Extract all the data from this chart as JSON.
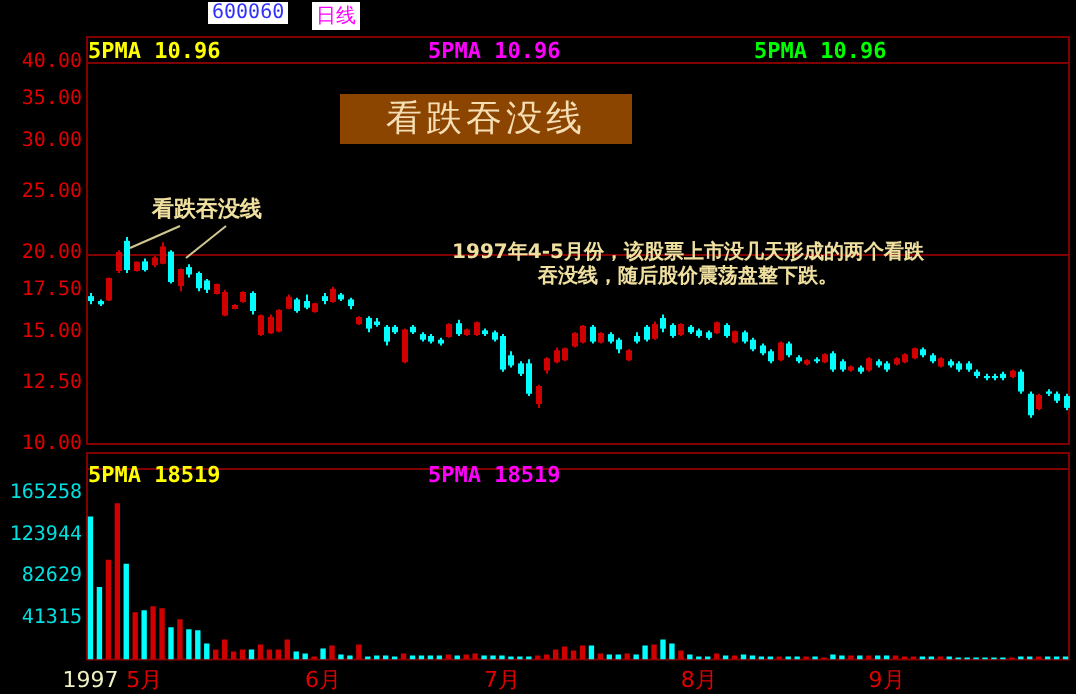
{
  "chart_data": [
    {
      "type": "candlestick",
      "title": "看跌吞没线",
      "annotations": [
        "600060",
        "日线",
        "5PMA 10.96",
        "5PMA 10.96",
        "5PMA 10.96",
        {
          "text": "看跌吞没线",
          "y": 20.5
        },
        "1997年4-5月份，该股票上市没几天形成的两个看跌吞没线，随后股价震荡盘整下跌。"
      ],
      "categories": [
        null,
        null,
        null,
        null,
        null,
        null,
        null,
        null,
        null,
        null,
        null,
        null,
        null,
        null,
        null,
        null,
        null,
        null,
        null,
        null,
        null,
        null,
        null,
        null,
        null,
        null,
        null,
        null,
        null,
        null,
        null,
        null,
        null,
        null,
        null,
        null,
        null,
        null,
        null,
        null,
        null,
        null,
        null,
        null,
        null,
        null,
        null,
        null,
        null,
        null,
        null,
        null,
        null,
        null,
        null,
        null,
        null,
        null,
        null,
        null,
        null,
        null,
        null,
        null,
        null,
        null,
        null,
        null,
        null,
        null,
        null,
        null,
        null,
        null,
        null,
        null,
        null,
        null,
        null,
        null,
        null,
        null,
        null,
        null,
        null,
        null,
        null,
        null,
        null,
        null,
        null,
        null,
        null,
        null,
        null,
        null,
        null,
        null,
        null,
        null,
        null,
        null,
        null,
        null,
        null,
        null,
        null,
        null,
        null,
        null
      ],
      "ohlc": [
        [
          17.1,
          17.3,
          16.6,
          16.8
        ],
        [
          16.8,
          16.9,
          16.5,
          16.6
        ],
        [
          16.9,
          18.3,
          16.8,
          18.2
        ],
        [
          18.8,
          20.2,
          18.6,
          20.0
        ],
        [
          20.9,
          21.2,
          18.6,
          18.8
        ],
        [
          18.8,
          19.4,
          18.7,
          19.3
        ],
        [
          19.4,
          19.6,
          18.7,
          18.8
        ],
        [
          19.2,
          19.8,
          19.0,
          19.6
        ],
        [
          19.3,
          20.8,
          19.2,
          20.4
        ],
        [
          20.1,
          20.2,
          17.9,
          18.0
        ],
        [
          17.8,
          18.9,
          17.4,
          18.8
        ],
        [
          19.0,
          19.2,
          18.3,
          18.5
        ],
        [
          18.6,
          18.7,
          17.4,
          17.6
        ],
        [
          18.1,
          18.2,
          17.3,
          17.5
        ],
        [
          17.3,
          17.9,
          17.2,
          17.8
        ],
        [
          16.0,
          17.5,
          15.9,
          17.3
        ],
        [
          16.4,
          16.6,
          16.3,
          16.5
        ],
        [
          16.8,
          17.4,
          16.7,
          17.3
        ],
        [
          17.3,
          17.4,
          16.0,
          16.2
        ],
        [
          14.9,
          16.0,
          14.8,
          15.9
        ],
        [
          15.0,
          16.0,
          14.9,
          15.8
        ],
        [
          15.1,
          16.3,
          15.0,
          16.2
        ],
        [
          16.4,
          17.2,
          16.3,
          17.0
        ],
        [
          16.9,
          17.0,
          16.1,
          16.2
        ],
        [
          16.8,
          17.2,
          16.3,
          16.4
        ],
        [
          16.2,
          16.7,
          16.1,
          16.6
        ],
        [
          17.1,
          17.3,
          16.6,
          16.8
        ],
        [
          16.8,
          17.7,
          16.7,
          17.5
        ],
        [
          17.2,
          17.3,
          16.8,
          16.9
        ],
        [
          16.9,
          17.0,
          16.3,
          16.5
        ],
        [
          15.5,
          15.9,
          15.4,
          15.8
        ],
        [
          15.8,
          15.9,
          15.0,
          15.2
        ],
        [
          15.6,
          15.8,
          15.3,
          15.4
        ],
        [
          15.3,
          15.4,
          14.3,
          14.5
        ],
        [
          15.3,
          15.4,
          14.9,
          15.0
        ],
        [
          13.5,
          15.2,
          13.4,
          15.1
        ],
        [
          15.3,
          15.4,
          14.9,
          15.0
        ],
        [
          14.9,
          15.0,
          14.5,
          14.6
        ],
        [
          14.8,
          14.9,
          14.4,
          14.5
        ],
        [
          14.6,
          14.7,
          14.3,
          14.4
        ],
        [
          14.8,
          15.5,
          14.7,
          15.4
        ],
        [
          15.5,
          15.7,
          14.8,
          14.9
        ],
        [
          14.9,
          15.2,
          14.8,
          15.1
        ],
        [
          14.9,
          15.6,
          14.8,
          15.5
        ],
        [
          15.1,
          15.2,
          14.8,
          14.9
        ],
        [
          15.0,
          15.1,
          14.5,
          14.6
        ],
        [
          14.8,
          14.9,
          13.0,
          13.1
        ],
        [
          13.8,
          14.0,
          13.2,
          13.3
        ],
        [
          13.4,
          13.5,
          12.8,
          12.9
        ],
        [
          13.4,
          13.6,
          11.9,
          12.0
        ],
        [
          11.6,
          12.4,
          11.4,
          12.3
        ],
        [
          13.1,
          13.7,
          12.9,
          13.6
        ],
        [
          13.5,
          14.2,
          13.4,
          14.0
        ],
        [
          13.6,
          14.2,
          13.5,
          14.1
        ],
        [
          14.3,
          15.0,
          14.2,
          14.9
        ],
        [
          14.5,
          15.4,
          14.4,
          15.3
        ],
        [
          15.3,
          15.4,
          14.4,
          14.5
        ],
        [
          14.5,
          15.0,
          14.4,
          14.9
        ],
        [
          14.9,
          15.0,
          14.4,
          14.5
        ],
        [
          14.6,
          14.7,
          13.9,
          14.1
        ],
        [
          13.6,
          14.1,
          13.5,
          14.0
        ],
        [
          14.8,
          15.0,
          14.4,
          14.5
        ],
        [
          15.3,
          15.4,
          14.5,
          14.6
        ],
        [
          14.7,
          15.6,
          14.6,
          15.4
        ],
        [
          15.8,
          16.0,
          15.0,
          15.2
        ],
        [
          15.4,
          15.5,
          14.7,
          14.8
        ],
        [
          14.9,
          15.5,
          14.8,
          15.4
        ],
        [
          15.3,
          15.4,
          14.9,
          15.0
        ],
        [
          15.1,
          15.2,
          14.7,
          14.8
        ],
        [
          15.0,
          15.1,
          14.6,
          14.7
        ],
        [
          15.0,
          15.6,
          14.9,
          15.5
        ],
        [
          15.4,
          15.5,
          14.7,
          14.8
        ],
        [
          14.5,
          15.1,
          14.4,
          15.0
        ],
        [
          15.0,
          15.1,
          14.4,
          14.5
        ],
        [
          14.6,
          14.7,
          14.0,
          14.1
        ],
        [
          14.3,
          14.4,
          13.8,
          13.9
        ],
        [
          14.0,
          14.1,
          13.4,
          13.5
        ],
        [
          13.6,
          14.5,
          13.5,
          14.4
        ],
        [
          14.4,
          14.5,
          13.7,
          13.8
        ],
        [
          13.7,
          13.8,
          13.4,
          13.5
        ],
        [
          13.4,
          13.6,
          13.3,
          13.5
        ],
        [
          13.6,
          13.7,
          13.4,
          13.5
        ],
        [
          13.5,
          13.9,
          13.4,
          13.8
        ],
        [
          13.9,
          14.0,
          13.0,
          13.1
        ],
        [
          13.5,
          13.6,
          13.0,
          13.1
        ],
        [
          13.1,
          13.3,
          13.0,
          13.2
        ],
        [
          13.2,
          13.3,
          12.9,
          13.0
        ],
        [
          13.1,
          13.7,
          13.0,
          13.6
        ],
        [
          13.5,
          13.6,
          13.2,
          13.3
        ],
        [
          13.4,
          13.5,
          13.0,
          13.1
        ],
        [
          13.4,
          13.7,
          13.3,
          13.6
        ],
        [
          13.5,
          13.9,
          13.4,
          13.8
        ],
        [
          13.7,
          14.2,
          13.6,
          14.1
        ],
        [
          14.1,
          14.2,
          13.7,
          13.8
        ],
        [
          13.8,
          13.9,
          13.4,
          13.5
        ],
        [
          13.3,
          13.7,
          13.2,
          13.6
        ],
        [
          13.5,
          13.6,
          13.2,
          13.3
        ],
        [
          13.4,
          13.5,
          13.0,
          13.1
        ],
        [
          13.4,
          13.5,
          13.0,
          13.1
        ],
        [
          13.0,
          13.1,
          12.7,
          12.8
        ],
        [
          12.8,
          12.9,
          12.6,
          12.7
        ],
        [
          12.8,
          12.9,
          12.6,
          12.7
        ],
        [
          12.9,
          13.0,
          12.6,
          12.7
        ],
        [
          12.8,
          13.1,
          12.7,
          13.0
        ],
        [
          13.0,
          13.1,
          12.0,
          12.1
        ],
        [
          12.0,
          12.1,
          11.0,
          11.1
        ],
        [
          11.4,
          12.0,
          11.3,
          11.9
        ],
        [
          12.1,
          12.2,
          11.9,
          12.0
        ],
        [
          12.0,
          12.1,
          11.6,
          11.7
        ],
        [
          11.9,
          12.0,
          11.3,
          11.4
        ]
      ],
      "colors": [
        "#00ffff",
        "#00ffff",
        "#d00000",
        "#d00000",
        "#00ffff",
        "#d00000",
        "#00ffff",
        "#d00000",
        "#d00000",
        "#00ffff",
        "#d00000",
        "#00ffff",
        "#00ffff",
        "#00ffff",
        "#d00000",
        "#d00000",
        "#d00000",
        "#d00000",
        "#00ffff",
        "#d00000",
        "#d00000",
        "#d00000",
        "#d00000",
        "#00ffff",
        "#00ffff",
        "#d00000",
        "#00ffff",
        "#d00000",
        "#00ffff",
        "#00ffff",
        "#d00000",
        "#00ffff",
        "#00ffff",
        "#00ffff",
        "#00ffff",
        "#d00000",
        "#00ffff",
        "#00ffff",
        "#00ffff",
        "#00ffff",
        "#d00000",
        "#00ffff",
        "#d00000",
        "#d00000",
        "#00ffff",
        "#00ffff",
        "#00ffff",
        "#00ffff",
        "#00ffff",
        "#00ffff",
        "#d00000",
        "#d00000",
        "#d00000",
        "#d00000",
        "#d00000",
        "#d00000",
        "#00ffff",
        "#d00000",
        "#00ffff",
        "#00ffff",
        "#d00000",
        "#00ffff",
        "#00ffff",
        "#d00000",
        "#00ffff",
        "#00ffff",
        "#d00000",
        "#00ffff",
        "#00ffff",
        "#00ffff",
        "#d00000",
        "#00ffff",
        "#d00000",
        "#00ffff",
        "#00ffff",
        "#00ffff",
        "#00ffff",
        "#d00000",
        "#00ffff",
        "#00ffff",
        "#d00000",
        "#00ffff",
        "#d00000",
        "#00ffff",
        "#00ffff",
        "#d00000",
        "#00ffff",
        "#d00000",
        "#00ffff",
        "#00ffff",
        "#d00000",
        "#d00000",
        "#d00000",
        "#00ffff",
        "#00ffff",
        "#d00000",
        "#00ffff",
        "#00ffff",
        "#00ffff",
        "#00ffff",
        "#00ffff",
        "#00ffff",
        "#00ffff",
        "#d00000",
        "#00ffff",
        "#00ffff",
        "#d00000",
        "#00ffff",
        "#00ffff",
        "#00ffff"
      ],
      "log": "y",
      "ylim": [
        10,
        40
      ],
      "yticks": [
        {
          "value": 10,
          "label": "10.00"
        },
        {
          "value": 12.5,
          "label": "12.50"
        },
        {
          "value": 15,
          "label": "15.00"
        },
        {
          "value": 17.5,
          "label": "17.50"
        },
        {
          "value": 20,
          "label": "20.00"
        },
        {
          "value": 25,
          "label": "25.00"
        },
        {
          "value": 30,
          "label": "30.00"
        },
        {
          "value": 35,
          "label": "35.00"
        },
        {
          "value": 40,
          "label": "40.00"
        }
      ],
      "tick_labels": "y",
      "grid": false,
      "ref_lines": [
        {
          "axis": "y",
          "value": 20
        }
      ]
    },
    {
      "type": "bar",
      "annotations": [
        "5PMA 18519",
        "5PMA 18519"
      ],
      "categories": [
        "1997",
        null,
        null,
        null,
        null,
        null,
        "5月",
        null,
        null,
        null,
        null,
        null,
        null,
        null,
        null,
        null,
        null,
        null,
        null,
        null,
        null,
        null,
        null,
        null,
        null,
        null,
        "6月",
        null,
        null,
        null,
        null,
        null,
        null,
        null,
        null,
        null,
        null,
        null,
        null,
        null,
        null,
        null,
        null,
        null,
        null,
        null,
        "7月",
        null,
        null,
        null,
        null,
        null,
        null,
        null,
        null,
        null,
        null,
        null,
        null,
        null,
        null,
        null,
        null,
        null,
        null,
        null,
        null,
        null,
        "8月",
        null,
        null,
        null,
        null,
        null,
        null,
        null,
        null,
        null,
        null,
        null,
        null,
        null,
        null,
        null,
        null,
        null,
        null,
        null,
        null,
        "9月",
        null,
        null,
        null,
        null,
        null,
        null,
        null,
        null,
        null,
        null,
        null,
        null,
        null,
        null,
        null,
        null,
        null,
        null,
        null,
        null
      ],
      "values": [
        142000,
        72000,
        99000,
        155000,
        95000,
        47000,
        49000,
        53000,
        51000,
        32000,
        40000,
        30000,
        29000,
        16000,
        10000,
        20000,
        8000,
        10000,
        10000,
        15000,
        10000,
        10000,
        20000,
        8000,
        6000,
        3000,
        11000,
        14000,
        5000,
        4000,
        15000,
        3000,
        4000,
        4000,
        3000,
        6000,
        4000,
        4000,
        4000,
        4000,
        5000,
        4000,
        5000,
        6000,
        4000,
        4000,
        4000,
        3000,
        3000,
        3000,
        4000,
        5000,
        10000,
        13000,
        9000,
        14000,
        14000,
        6000,
        5000,
        5000,
        6000,
        5000,
        14000,
        15000,
        20000,
        16000,
        9000,
        5000,
        3000,
        3000,
        6000,
        4000,
        4000,
        5000,
        4000,
        3000,
        3000,
        3000,
        3000,
        3000,
        3000,
        3000,
        2000,
        5000,
        4000,
        4000,
        4000,
        4000,
        4000,
        4000,
        4000,
        3000,
        3000,
        3000,
        3000,
        3000,
        3000,
        2000,
        2000,
        2000,
        2000,
        2000,
        2000,
        2000,
        3000,
        3000,
        3000,
        3000,
        3000,
        3000
      ],
      "colors": [
        "#00ffff",
        "#00ffff",
        "#d00000",
        "#d00000",
        "#00ffff",
        "#d00000",
        "#00ffff",
        "#d00000",
        "#d00000",
        "#00ffff",
        "#d00000",
        "#00ffff",
        "#00ffff",
        "#00ffff",
        "#d00000",
        "#d00000",
        "#d00000",
        "#d00000",
        "#00ffff",
        "#d00000",
        "#d00000",
        "#d00000",
        "#d00000",
        "#00ffff",
        "#00ffff",
        "#d00000",
        "#00ffff",
        "#d00000",
        "#00ffff",
        "#00ffff",
        "#d00000",
        "#00ffff",
        "#00ffff",
        "#00ffff",
        "#00ffff",
        "#d00000",
        "#00ffff",
        "#00ffff",
        "#00ffff",
        "#00ffff",
        "#d00000",
        "#00ffff",
        "#d00000",
        "#d00000",
        "#00ffff",
        "#00ffff",
        "#00ffff",
        "#00ffff",
        "#00ffff",
        "#00ffff",
        "#d00000",
        "#d00000",
        "#d00000",
        "#d00000",
        "#d00000",
        "#d00000",
        "#00ffff",
        "#d00000",
        "#00ffff",
        "#00ffff",
        "#d00000",
        "#00ffff",
        "#00ffff",
        "#d00000",
        "#00ffff",
        "#00ffff",
        "#d00000",
        "#00ffff",
        "#00ffff",
        "#00ffff",
        "#d00000",
        "#00ffff",
        "#d00000",
        "#00ffff",
        "#00ffff",
        "#00ffff",
        "#00ffff",
        "#d00000",
        "#00ffff",
        "#00ffff",
        "#d00000",
        "#00ffff",
        "#d00000",
        "#00ffff",
        "#00ffff",
        "#d00000",
        "#00ffff",
        "#d00000",
        "#00ffff",
        "#00ffff",
        "#d00000",
        "#d00000",
        "#d00000",
        "#00ffff",
        "#00ffff",
        "#d00000",
        "#00ffff",
        "#00ffff",
        "#00ffff",
        "#00ffff",
        "#00ffff",
        "#00ffff",
        "#00ffff",
        "#d00000",
        "#00ffff",
        "#00ffff",
        "#d00000",
        "#00ffff",
        "#00ffff",
        "#00ffff"
      ],
      "ylim": [
        0,
        190000
      ],
      "yticks": [
        41315,
        82629,
        123944,
        165258
      ],
      "grid": false
    }
  ]
}
